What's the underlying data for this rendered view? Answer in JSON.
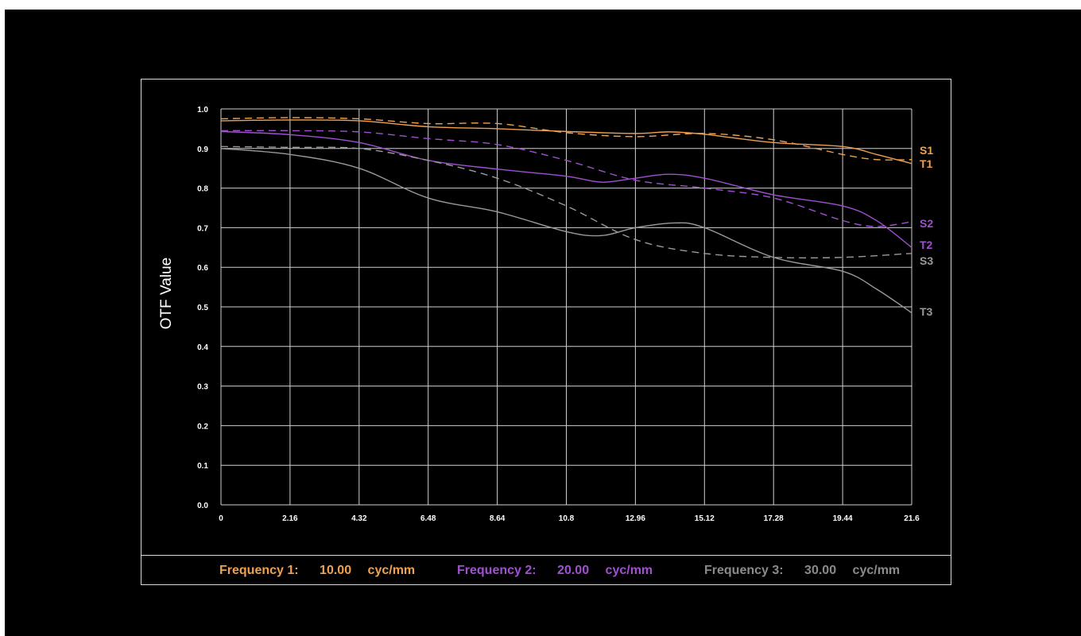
{
  "chart_data": {
    "type": "line",
    "ylabel": "OTF Value",
    "xlim": [
      0,
      21.6
    ],
    "ylim": [
      0,
      1.0
    ],
    "x_ticks": [
      "0",
      "2.16",
      "4.32",
      "6.48",
      "8.64",
      "10.8",
      "12.96",
      "15.12",
      "17.28",
      "19.44",
      "21.6"
    ],
    "y_ticks": [
      "0.0",
      "0.1",
      "0.2",
      "0.3",
      "0.4",
      "0.5",
      "0.6",
      "0.7",
      "0.8",
      "0.9",
      "1.0"
    ],
    "grid": true,
    "series": [
      {
        "name": "S1",
        "style": "solid",
        "color": "#f0a050",
        "x": [
          0,
          2.16,
          4.32,
          6.48,
          8.64,
          10.8,
          12.96,
          14.0,
          15.12,
          17.28,
          19.44,
          20.5,
          21.6
        ],
        "y": [
          0.97,
          0.972,
          0.97,
          0.955,
          0.95,
          0.943,
          0.938,
          0.942,
          0.936,
          0.915,
          0.905,
          0.885,
          0.862
        ]
      },
      {
        "name": "T1",
        "style": "dashed",
        "color": "#f0a050",
        "x": [
          0,
          2.16,
          4.32,
          6.48,
          8.64,
          10.8,
          12.96,
          15.12,
          17.28,
          19.44,
          20.5,
          21.6
        ],
        "y": [
          0.975,
          0.978,
          0.975,
          0.963,
          0.963,
          0.94,
          0.93,
          0.938,
          0.922,
          0.885,
          0.872,
          0.872
        ]
      },
      {
        "name": "S2",
        "style": "dashed",
        "color": "#a050d0",
        "x": [
          0,
          2.16,
          4.32,
          6.48,
          8.64,
          10.8,
          12.96,
          15.12,
          17.28,
          19.44,
          20.5,
          21.6
        ],
        "y": [
          0.945,
          0.945,
          0.942,
          0.925,
          0.91,
          0.87,
          0.82,
          0.8,
          0.775,
          0.718,
          0.703,
          0.715
        ]
      },
      {
        "name": "T2",
        "style": "solid",
        "color": "#a050d0",
        "x": [
          0,
          2.16,
          4.32,
          6.48,
          8.64,
          10.8,
          11.9,
          12.96,
          14.0,
          15.12,
          17.28,
          19.44,
          20.5,
          21.6
        ],
        "y": [
          0.943,
          0.935,
          0.915,
          0.87,
          0.848,
          0.83,
          0.815,
          0.825,
          0.835,
          0.825,
          0.783,
          0.755,
          0.718,
          0.65
        ]
      },
      {
        "name": "S3",
        "style": "dashed",
        "color": "#9a9a9a",
        "x": [
          0,
          2.16,
          4.32,
          6.48,
          8.64,
          10.8,
          12.96,
          15.12,
          17.28,
          19.44,
          21.6
        ],
        "y": [
          0.905,
          0.903,
          0.9,
          0.87,
          0.825,
          0.755,
          0.67,
          0.635,
          0.625,
          0.625,
          0.635
        ]
      },
      {
        "name": "T3",
        "style": "solid",
        "color": "#9a9a9a",
        "x": [
          0,
          2.16,
          4.32,
          6.48,
          8.64,
          10.8,
          11.9,
          12.96,
          14.2,
          15.12,
          17.28,
          19.44,
          20.5,
          21.6
        ],
        "y": [
          0.9,
          0.885,
          0.85,
          0.775,
          0.74,
          0.69,
          0.68,
          0.7,
          0.712,
          0.7,
          0.625,
          0.59,
          0.545,
          0.485
        ]
      }
    ]
  },
  "legend": [
    {
      "label": "Frequency 1:",
      "value": "10.00",
      "unit": "cyc/mm",
      "color": "#f0a050"
    },
    {
      "label": "Frequency 2:",
      "value": "20.00",
      "unit": "cyc/mm",
      "color": "#a050d0"
    },
    {
      "label": "Frequency 3:",
      "value": "30.00",
      "unit": "cyc/mm",
      "color": "#8a8a8a"
    }
  ]
}
